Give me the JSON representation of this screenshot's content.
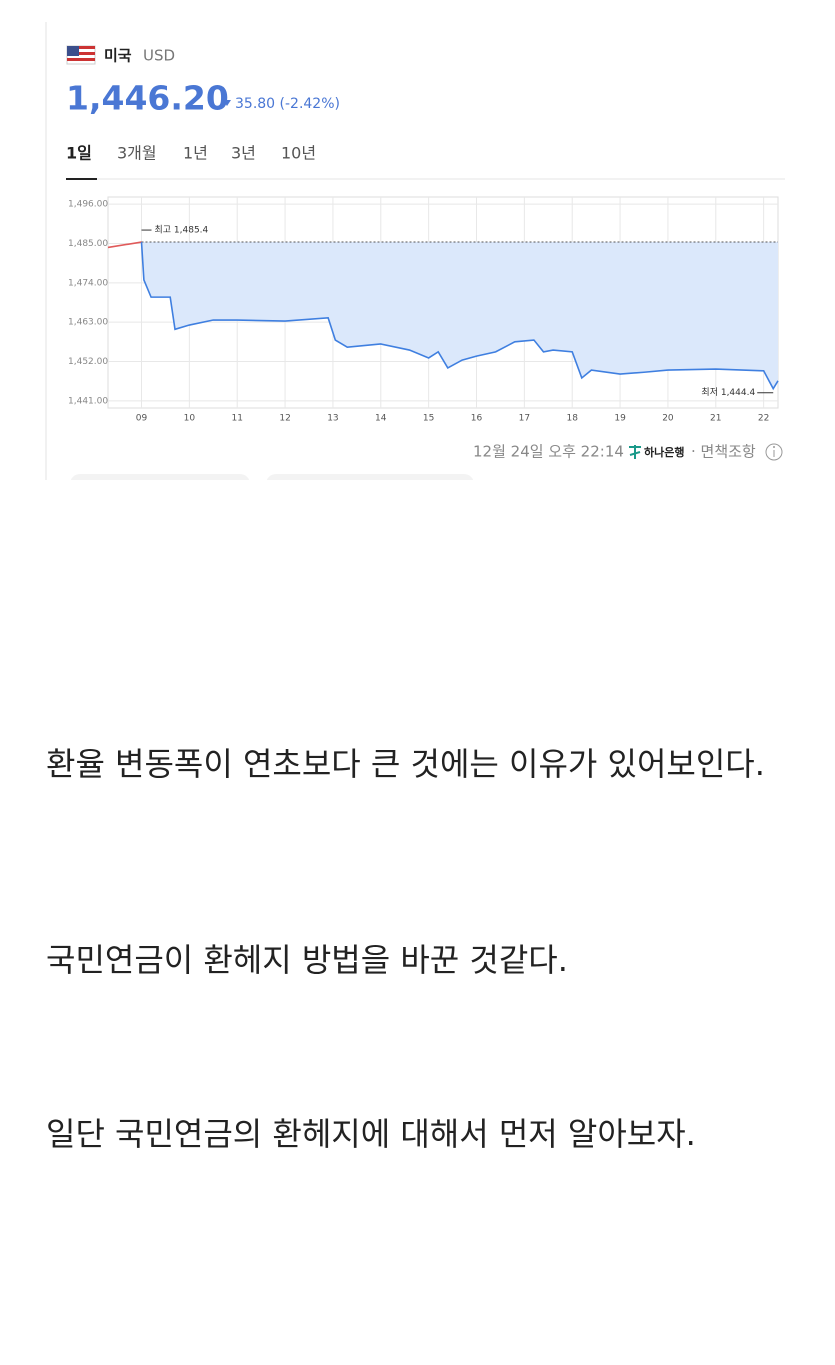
{
  "header": {
    "country": "미국",
    "currency": "USD",
    "rate": "1,446.20",
    "change": "35.80 (-2.42%)",
    "tabs": [
      "1일",
      "3개월",
      "1년",
      "3년",
      "10년"
    ]
  },
  "chart_data": {
    "type": "line",
    "x": [
      8.3,
      9.0,
      9.05,
      9.2,
      9.6,
      9.7,
      10.0,
      10.5,
      11.0,
      12.0,
      12.9,
      13.05,
      13.3,
      14.0,
      14.6,
      15.0,
      15.2,
      15.4,
      15.7,
      16.0,
      16.4,
      16.8,
      17.2,
      17.4,
      17.6,
      18.0,
      18.2,
      18.4,
      19.0,
      19.5,
      20.0,
      21.0,
      22.0,
      22.2,
      22.3
    ],
    "series": [
      {
        "color": "#e05a5a",
        "values": [
          1483.9,
          1485.4,
          null,
          null,
          null,
          null,
          null,
          null,
          null,
          null,
          null,
          null,
          null,
          null,
          null,
          null,
          null,
          null,
          null,
          null,
          null,
          null,
          null,
          null,
          null,
          null,
          null,
          null,
          null,
          null,
          null,
          null,
          null,
          null,
          null
        ]
      },
      {
        "color": "#3f7fe0",
        "values": [
          null,
          1485.4,
          1474.8,
          1470,
          1470,
          1461,
          1462.2,
          1463.6,
          1463.6,
          1463.3,
          1464.2,
          1458,
          1456,
          1456.9,
          1455.2,
          1453,
          1454.7,
          1450.2,
          1452.4,
          1453.5,
          1454.7,
          1457.5,
          1458,
          1454.7,
          1455.2,
          1454.7,
          1447.4,
          1449.6,
          1448.5,
          1449,
          1449.6,
          1449.9,
          1449.4,
          1444.4,
          1446.6
        ]
      }
    ],
    "xlim": [
      8.3,
      22.3
    ],
    "xticks": [
      {
        "value": 9,
        "label": "09"
      },
      10,
      11,
      12,
      13,
      14,
      15,
      16,
      17,
      18,
      19,
      20,
      21,
      22
    ],
    "ylim": [
      1439,
      1498
    ],
    "yticks": [
      {
        "value": 1441,
        "label": "1,441.00"
      },
      {
        "value": 1452,
        "label": "1,452.00"
      },
      {
        "value": 1463,
        "label": "1,463.00"
      },
      {
        "value": 1474,
        "label": "1,474.00"
      },
      {
        "value": 1485,
        "label": "1,485.00"
      },
      {
        "value": 1496,
        "label": "1,496.00"
      }
    ],
    "grid": true,
    "annotations": [
      "최고 1,485.4",
      "최저 1,444.4"
    ]
  },
  "footer": {
    "timestamp": "12월 24일 오후 22:14",
    "bank": "하나은행",
    "disclaimer": "· 면책조항"
  },
  "paragraphs": [
    "환율 변동폭이 연초보다 큰 것에는 이유가 있어보인다.",
    "국민연금이 환헤지 방법을 바꾼 것같다.",
    "일단 국민연금의 환헤지에 대해서 먼저 알아보자."
  ]
}
